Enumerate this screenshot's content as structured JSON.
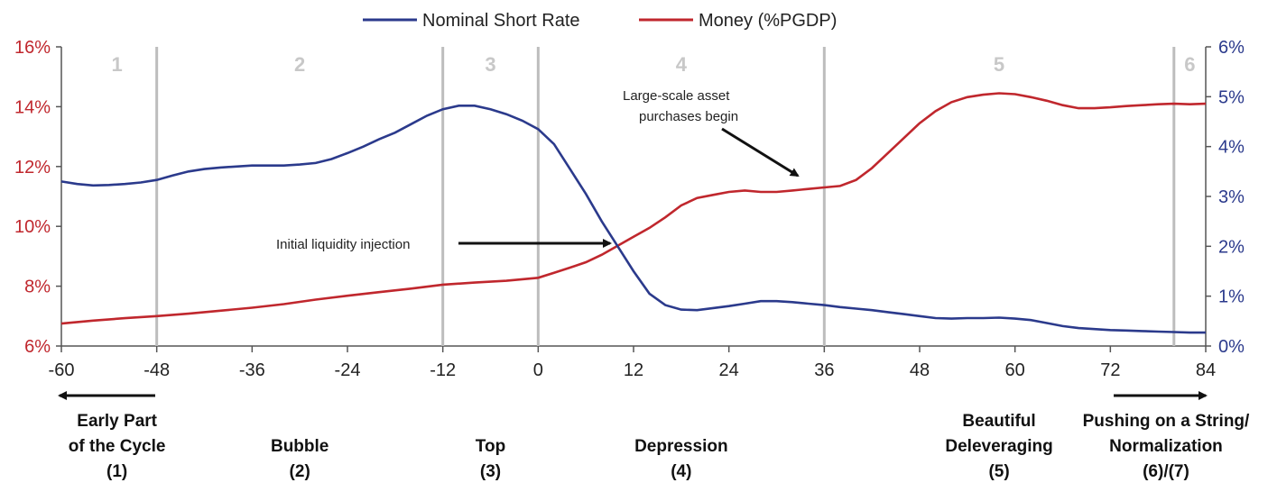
{
  "legend": {
    "short_rate": "Nominal Short Rate",
    "money": "Money (%PGDP)"
  },
  "colors": {
    "short_rate": "#2b3a8c",
    "money": "#c0272d",
    "phase_line": "#bdbdbd"
  },
  "chart_data": {
    "type": "line",
    "legend_position": "top-center",
    "grid": false,
    "x_ticks": [
      -60,
      -48,
      -36,
      -24,
      -12,
      0,
      12,
      24,
      36,
      48,
      60,
      72,
      84
    ],
    "xlim": [
      -60,
      84
    ],
    "y_left": {
      "ticks": [
        "6%",
        "8%",
        "10%",
        "12%",
        "14%",
        "16%"
      ],
      "range": [
        6,
        16
      ]
    },
    "y_right": {
      "ticks": [
        "0%",
        "1%",
        "2%",
        "3%",
        "4%",
        "5%",
        "6%"
      ],
      "range": [
        0,
        6
      ]
    },
    "phase_boundaries": [
      -48,
      -12,
      0,
      36,
      80
    ],
    "phases": [
      {
        "number": "1",
        "x": -53,
        "label_lines": [
          "Early Part",
          "of the Cycle",
          "(1)"
        ],
        "label_x": -53
      },
      {
        "number": "2",
        "x": -30,
        "label_lines": [
          "Bubble",
          "(2)"
        ],
        "label_x": -30
      },
      {
        "number": "3",
        "x": -6,
        "label_lines": [
          "Top",
          "(3)"
        ],
        "label_x": -6
      },
      {
        "number": "4",
        "x": 18,
        "label_lines": [
          "Depression",
          "(4)"
        ],
        "label_x": 18
      },
      {
        "number": "5",
        "x": 58,
        "label_lines": [
          "Beautiful",
          "Deleveraging",
          "(5)"
        ],
        "label_x": 58
      },
      {
        "number": "6",
        "x": 82,
        "label_lines": [
          "Pushing on a String/",
          "Normalization",
          "(6)/(7)"
        ],
        "label_x": 79
      }
    ],
    "series": [
      {
        "name": "Nominal Short Rate",
        "axis": "right",
        "x": [
          -60,
          -58,
          -56,
          -54,
          -52,
          -50,
          -48,
          -46,
          -44,
          -42,
          -40,
          -38,
          -36,
          -34,
          -32,
          -30,
          -28,
          -26,
          -24,
          -22,
          -20,
          -18,
          -16,
          -14,
          -12,
          -10,
          -8,
          -6,
          -4,
          -2,
          0,
          2,
          4,
          6,
          8,
          10,
          12,
          14,
          16,
          18,
          20,
          22,
          24,
          26,
          28,
          30,
          32,
          34,
          36,
          38,
          40,
          42,
          44,
          46,
          48,
          50,
          52,
          54,
          56,
          58,
          60,
          62,
          64,
          66,
          68,
          70,
          72,
          74,
          76,
          78,
          80,
          82,
          84
        ],
        "values": [
          3.3,
          3.25,
          3.22,
          3.23,
          3.25,
          3.28,
          3.33,
          3.42,
          3.5,
          3.55,
          3.58,
          3.6,
          3.62,
          3.62,
          3.62,
          3.64,
          3.67,
          3.75,
          3.87,
          4.0,
          4.15,
          4.28,
          4.45,
          4.62,
          4.75,
          4.82,
          4.82,
          4.75,
          4.65,
          4.52,
          4.35,
          4.05,
          3.55,
          3.05,
          2.5,
          2.0,
          1.5,
          1.05,
          0.82,
          0.73,
          0.72,
          0.76,
          0.8,
          0.85,
          0.9,
          0.9,
          0.88,
          0.85,
          0.82,
          0.78,
          0.75,
          0.72,
          0.68,
          0.64,
          0.6,
          0.56,
          0.55,
          0.56,
          0.56,
          0.57,
          0.55,
          0.52,
          0.46,
          0.4,
          0.36,
          0.34,
          0.32,
          0.31,
          0.3,
          0.29,
          0.28,
          0.27,
          0.27
        ]
      },
      {
        "name": "Money (%PGDP)",
        "axis": "left",
        "x": [
          -60,
          -56,
          -52,
          -48,
          -44,
          -40,
          -36,
          -32,
          -28,
          -24,
          -20,
          -16,
          -12,
          -8,
          -4,
          0,
          2,
          4,
          6,
          8,
          10,
          12,
          14,
          16,
          18,
          20,
          22,
          24,
          26,
          28,
          30,
          32,
          34,
          36,
          38,
          40,
          42,
          44,
          46,
          48,
          50,
          52,
          54,
          56,
          58,
          60,
          62,
          64,
          66,
          68,
          70,
          72,
          74,
          76,
          78,
          80,
          82,
          84
        ],
        "values": [
          6.75,
          6.85,
          6.93,
          7.0,
          7.08,
          7.18,
          7.28,
          7.4,
          7.55,
          7.68,
          7.8,
          7.92,
          8.05,
          8.12,
          8.18,
          8.28,
          8.45,
          8.62,
          8.8,
          9.05,
          9.35,
          9.65,
          9.95,
          10.3,
          10.7,
          10.95,
          11.05,
          11.15,
          11.2,
          11.15,
          11.15,
          11.2,
          11.25,
          11.3,
          11.35,
          11.55,
          11.95,
          12.45,
          12.95,
          13.45,
          13.85,
          14.15,
          14.32,
          14.4,
          14.45,
          14.42,
          14.32,
          14.2,
          14.05,
          13.95,
          13.95,
          13.98,
          14.02,
          14.05,
          14.08,
          14.1,
          14.08,
          14.1
        ]
      }
    ],
    "annotations": [
      {
        "id": "liquidity",
        "text_lines": [
          "Initial liquidity injection"
        ]
      },
      {
        "id": "lsap",
        "text_lines": [
          "Large-scale asset",
          "purchases begin"
        ]
      }
    ]
  }
}
